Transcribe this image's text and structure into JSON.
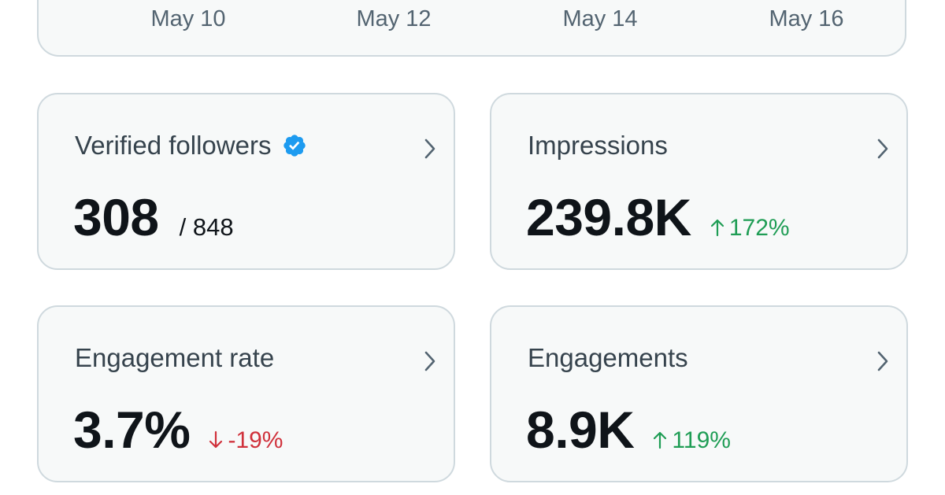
{
  "chart": {
    "x_axis_labels": [
      "May 10",
      "May 12",
      "May 14",
      "May 16"
    ]
  },
  "cards": [
    {
      "title": "Verified followers",
      "value": "308",
      "secondary": "/ 848",
      "icon": "verified-badge-icon"
    },
    {
      "title": "Impressions",
      "value": "239.8K",
      "change": "172%",
      "direction": "up"
    },
    {
      "title": "Engagement rate",
      "value": "3.7%",
      "change": "-19%",
      "direction": "down"
    },
    {
      "title": "Engagements",
      "value": "8.9K",
      "change": "119%",
      "direction": "up"
    }
  ],
  "colors": {
    "positive": "#1f9d55",
    "negative": "#d0313b",
    "verified": "#1d9bf0",
    "card_border": "#cfd9de",
    "card_background": "#f7f9f9"
  }
}
